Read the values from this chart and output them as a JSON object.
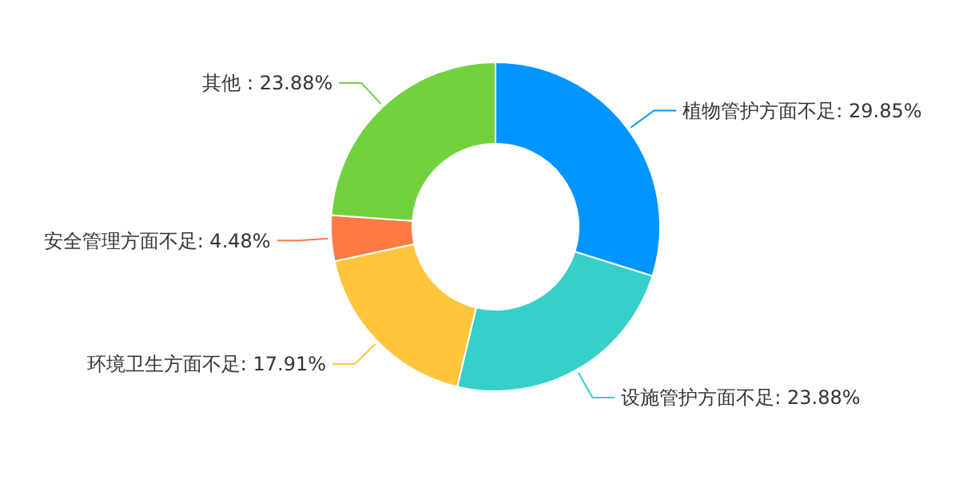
{
  "chart_data": {
    "type": "donut",
    "categories": [
      "植物管护方面不足",
      "设施管护方面不足",
      "环境卫生方面不足",
      "安全管理方面不足",
      "其他"
    ],
    "values": [
      29.85,
      23.88,
      17.91,
      4.48,
      23.88
    ],
    "colors": [
      "#0095ff",
      "#36cfc9",
      "#ffc53d",
      "#ff7a45",
      "#73d13d"
    ],
    "value_labels": [
      ": 29.85%",
      ": 23.88%",
      ": 17.91%",
      ": 4.48%",
      " : 23.88%"
    ],
    "legend": false
  }
}
